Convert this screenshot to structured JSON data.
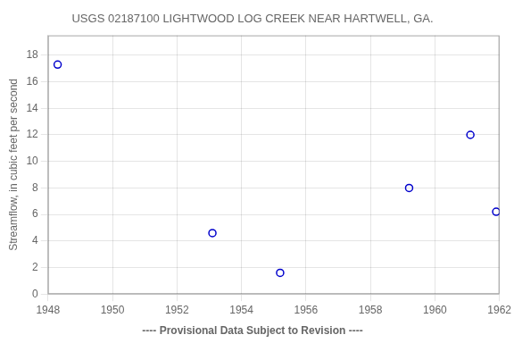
{
  "chart_data": {
    "type": "scatter",
    "title": "USGS 02187100 LIGHTWOOD LOG CREEK NEAR HARTWELL, GA.",
    "ylabel": "Streamflow, in cubic feet per second",
    "annotation": "---- Provisional Data Subject to Revision ----",
    "x": [
      1948.3,
      1953.1,
      1955.2,
      1959.2,
      1961.1,
      1961.9
    ],
    "values": [
      17.3,
      4.6,
      1.6,
      8.0,
      12.0,
      6.2
    ],
    "color": "#0000cc",
    "marker": "circle",
    "xlim": [
      1948,
      1962
    ],
    "ylim": [
      0,
      19.5
    ],
    "xticks": [
      1948,
      1950,
      1952,
      1954,
      1956,
      1958,
      1960,
      1962
    ],
    "yticks": [
      0,
      2,
      4,
      6,
      8,
      10,
      12,
      14,
      16,
      18
    ],
    "grid": true
  }
}
